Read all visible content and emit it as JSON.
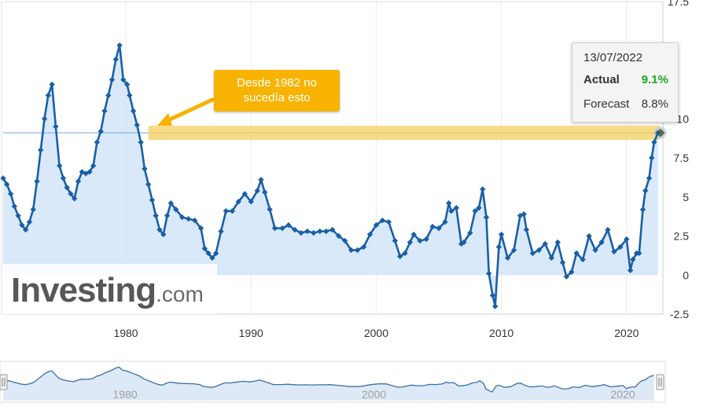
{
  "watermark": {
    "brand": "Investing",
    "domain": ".com"
  },
  "tooltip": {
    "date": "13/07/2022",
    "actual_label": "Actual",
    "actual_value": "9.1%",
    "forecast_label": "Forecast",
    "forecast_value": "8.8%"
  },
  "annotation": {
    "line1": "Desde 1982 no",
    "line2": "sucedía esto"
  },
  "colors": {
    "line": "#1a5fa6",
    "fill": "#d5e7fa",
    "highlight": "#f7cf5c",
    "annotation": "#f7b300",
    "actual_value": "#1fa52a"
  },
  "navigator": {
    "labels": [
      "1980",
      "2000",
      "2020"
    ]
  },
  "chart_data": {
    "type": "line",
    "title": "",
    "xlabel": "",
    "ylabel": "",
    "x_ticks": [
      "1980",
      "1990",
      "2000",
      "2010",
      "2020"
    ],
    "y_ticks": [
      "-2.5",
      "0",
      "2.5",
      "5",
      "7.5",
      "10",
      "17.5"
    ],
    "xlim": [
      1970.2,
      2022.9
    ],
    "ylim": [
      -2.5,
      17.5
    ],
    "grid": "vertical",
    "highlight_level": 9.1,
    "series": [
      {
        "x": [
          1970.2,
          1970.5,
          1970.8,
          1971.1,
          1971.4,
          1971.7,
          1972.0,
          1972.3,
          1972.6,
          1972.9,
          1973.2,
          1973.5,
          1973.8,
          1974.1,
          1974.4,
          1974.7,
          1975.0,
          1975.3,
          1975.6,
          1975.9,
          1976.2,
          1976.5,
          1976.8,
          1977.1,
          1977.4,
          1977.7,
          1978.0,
          1978.3,
          1978.6,
          1978.9,
          1979.2,
          1979.5,
          1979.8,
          1980.1,
          1980.3,
          1980.6,
          1980.9,
          1981.2,
          1981.5,
          1981.8,
          1982.1,
          1982.4,
          1982.7,
          1983.0,
          1983.3,
          1983.6,
          1984.0,
          1984.5,
          1985.0,
          1985.5,
          1986.0,
          1986.3,
          1986.6,
          1986.9,
          1987.2,
          1987.6,
          1988.0,
          1988.5,
          1989.0,
          1989.5,
          1990.0,
          1990.5,
          1990.8,
          1991.1,
          1991.5,
          1991.9,
          1992.5,
          1993.0,
          1993.5,
          1994.0,
          1994.5,
          1995.0,
          1995.5,
          1996.0,
          1996.5,
          1997.0,
          1997.5,
          1998.0,
          1998.5,
          1999.0,
          1999.5,
          2000.0,
          2000.5,
          2001.0,
          2001.5,
          2001.9,
          2002.3,
          2002.7,
          2003.0,
          2003.5,
          2004.0,
          2004.5,
          2005.0,
          2005.5,
          2005.8,
          2006.0,
          2006.4,
          2006.8,
          2007.0,
          2007.5,
          2007.9,
          2008.2,
          2008.5,
          2008.8,
          2009.0,
          2009.3,
          2009.5,
          2009.8,
          2010.0,
          2010.5,
          2011.0,
          2011.5,
          2011.8,
          2012.0,
          2012.5,
          2013.0,
          2013.5,
          2014.0,
          2014.5,
          2014.9,
          2015.2,
          2015.6,
          2016.0,
          2016.5,
          2017.0,
          2017.5,
          2018.0,
          2018.5,
          2019.0,
          2019.5,
          2020.0,
          2020.3,
          2020.5,
          2020.8,
          2021.0,
          2021.3,
          2021.5,
          2021.8,
          2022.0,
          2022.2,
          2022.5
        ],
        "y": [
          6.2,
          5.8,
          5.2,
          4.4,
          3.8,
          3.2,
          2.9,
          3.4,
          4.2,
          6.0,
          8.0,
          10.0,
          11.5,
          12.2,
          9.5,
          7.0,
          6.2,
          5.6,
          5.2,
          4.9,
          6.0,
          6.6,
          6.5,
          6.6,
          7.0,
          8.5,
          9.2,
          10.5,
          11.5,
          12.5,
          13.8,
          14.7,
          12.5,
          12.2,
          11.5,
          10.5,
          9.6,
          8.5,
          6.8,
          5.8,
          4.8,
          3.8,
          2.9,
          2.6,
          3.8,
          4.6,
          4.2,
          3.7,
          3.6,
          3.5,
          3.0,
          1.7,
          1.4,
          1.1,
          1.4,
          2.8,
          4.1,
          4.1,
          4.7,
          5.2,
          4.7,
          5.4,
          6.1,
          5.3,
          4.2,
          3.0,
          3.0,
          3.2,
          2.9,
          2.7,
          2.8,
          2.7,
          2.8,
          2.8,
          2.9,
          2.5,
          2.2,
          1.6,
          1.6,
          1.8,
          2.6,
          3.2,
          3.5,
          3.4,
          2.2,
          1.2,
          1.4,
          2.1,
          2.6,
          2.2,
          2.3,
          3.1,
          3.0,
          3.4,
          4.6,
          4.1,
          4.3,
          2.0,
          2.1,
          2.7,
          4.1,
          4.3,
          5.5,
          3.7,
          0.1,
          -1.3,
          -2.0,
          1.8,
          2.6,
          1.1,
          1.6,
          3.8,
          3.9,
          2.9,
          1.4,
          1.6,
          2.0,
          1.1,
          2.1,
          0.8,
          -0.1,
          0.2,
          1.4,
          1.0,
          2.5,
          1.6,
          2.1,
          2.9,
          1.5,
          1.8,
          2.3,
          0.3,
          1.0,
          1.4,
          1.4,
          4.2,
          5.4,
          6.2,
          7.5,
          8.5,
          9.1
        ]
      }
    ]
  }
}
